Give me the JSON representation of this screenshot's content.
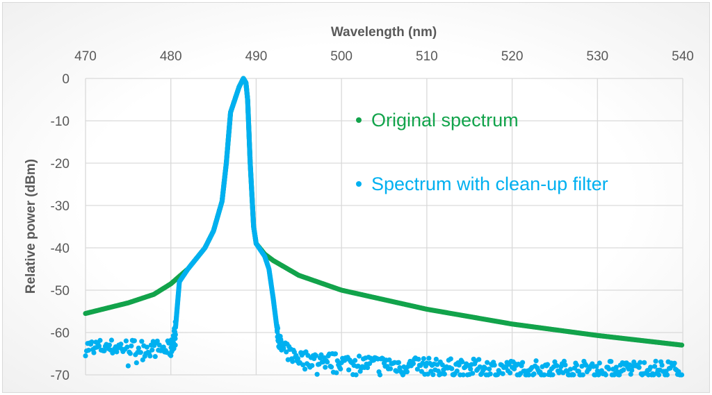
{
  "chart_data": {
    "type": "scatter",
    "xlabel": "Wavelength (nm)",
    "ylabel": "Relative power (dBm)",
    "xlim": [
      470,
      540
    ],
    "ylim": [
      -70,
      0
    ],
    "x_axis_position": "top",
    "xticks": [
      470,
      480,
      490,
      500,
      510,
      520,
      530,
      540
    ],
    "yticks": [
      0,
      -10,
      -20,
      -30,
      -40,
      -50,
      -60,
      -70
    ],
    "grid": true,
    "legend": "inside-right",
    "series": [
      {
        "name": "Original spectrum",
        "color": "#12A34B",
        "points": [
          [
            470,
            -55.5
          ],
          [
            475,
            -53
          ],
          [
            478,
            -51
          ],
          [
            480,
            -48.5
          ],
          [
            482,
            -45
          ],
          [
            484,
            -40
          ],
          [
            485,
            -36
          ],
          [
            486,
            -29
          ],
          [
            486.5,
            -20
          ],
          [
            487,
            -8
          ],
          [
            487.5,
            -5
          ],
          [
            488,
            -2
          ],
          [
            488.5,
            0
          ],
          [
            488.8,
            -1
          ],
          [
            489,
            -5
          ],
          [
            489.3,
            -20
          ],
          [
            489.7,
            -35
          ],
          [
            490,
            -39
          ],
          [
            491,
            -41.5
          ],
          [
            492,
            -43
          ],
          [
            495,
            -46.5
          ],
          [
            500,
            -50
          ],
          [
            510,
            -54.5
          ],
          [
            520,
            -58
          ],
          [
            530,
            -60.7
          ],
          [
            540,
            -63
          ]
        ]
      },
      {
        "name": "Spectrum with clean-up filter",
        "color": "#00B0F0",
        "points": [
          [
            470,
            -63.5
          ],
          [
            475,
            -63.5
          ],
          [
            480,
            -64
          ],
          [
            480.5,
            -60
          ],
          [
            481,
            -48
          ],
          [
            482,
            -45
          ],
          [
            484,
            -40
          ],
          [
            485,
            -36
          ],
          [
            486,
            -29
          ],
          [
            486.5,
            -20
          ],
          [
            487,
            -8
          ],
          [
            487.5,
            -5
          ],
          [
            488,
            -2
          ],
          [
            488.5,
            0
          ],
          [
            488.8,
            -1
          ],
          [
            489,
            -5
          ],
          [
            489.3,
            -20
          ],
          [
            489.7,
            -35
          ],
          [
            490,
            -39
          ],
          [
            491,
            -42
          ],
          [
            491.5,
            -45
          ],
          [
            492,
            -52
          ],
          [
            492.5,
            -60
          ],
          [
            493,
            -64
          ],
          [
            495,
            -66
          ],
          [
            500,
            -67
          ],
          [
            510,
            -68
          ],
          [
            520,
            -68.5
          ],
          [
            530,
            -68.7
          ],
          [
            540,
            -68.5
          ]
        ]
      }
    ]
  }
}
